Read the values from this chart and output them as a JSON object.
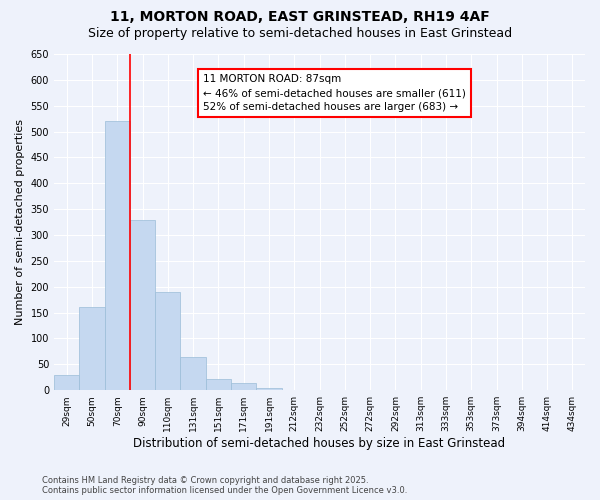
{
  "title": "11, MORTON ROAD, EAST GRINSTEAD, RH19 4AF",
  "subtitle": "Size of property relative to semi-detached houses in East Grinstead",
  "xlabel": "Distribution of semi-detached houses by size in East Grinstead",
  "ylabel": "Number of semi-detached properties",
  "categories": [
    "29sqm",
    "50sqm",
    "70sqm",
    "90sqm",
    "110sqm",
    "131sqm",
    "151sqm",
    "171sqm",
    "191sqm",
    "212sqm",
    "232sqm",
    "252sqm",
    "272sqm",
    "292sqm",
    "313sqm",
    "333sqm",
    "353sqm",
    "373sqm",
    "394sqm",
    "414sqm",
    "434sqm"
  ],
  "values": [
    30,
    160,
    520,
    330,
    190,
    65,
    22,
    13,
    5,
    1,
    1,
    0,
    0,
    0,
    0,
    0,
    0,
    0,
    0,
    0,
    1
  ],
  "bar_color": "#c5d8f0",
  "bar_edge_color": "#9abdd8",
  "property_line_x": 2.5,
  "property_sqm": 87,
  "annotation_line1": "11 MORTON ROAD: 87sqm",
  "annotation_line2": "← 46% of semi-detached houses are smaller (611)",
  "annotation_line3": "52% of semi-detached houses are larger (683) →",
  "annotation_box_color": "white",
  "annotation_box_edge_color": "red",
  "property_line_color": "red",
  "ylim": [
    0,
    650
  ],
  "yticks": [
    0,
    50,
    100,
    150,
    200,
    250,
    300,
    350,
    400,
    450,
    500,
    550,
    600,
    650
  ],
  "footer_line1": "Contains HM Land Registry data © Crown copyright and database right 2025.",
  "footer_line2": "Contains public sector information licensed under the Open Government Licence v3.0.",
  "bg_color": "#eef2fb",
  "grid_color": "white",
  "title_fontsize": 10,
  "subtitle_fontsize": 9,
  "xlabel_fontsize": 8.5,
  "ylabel_fontsize": 8
}
